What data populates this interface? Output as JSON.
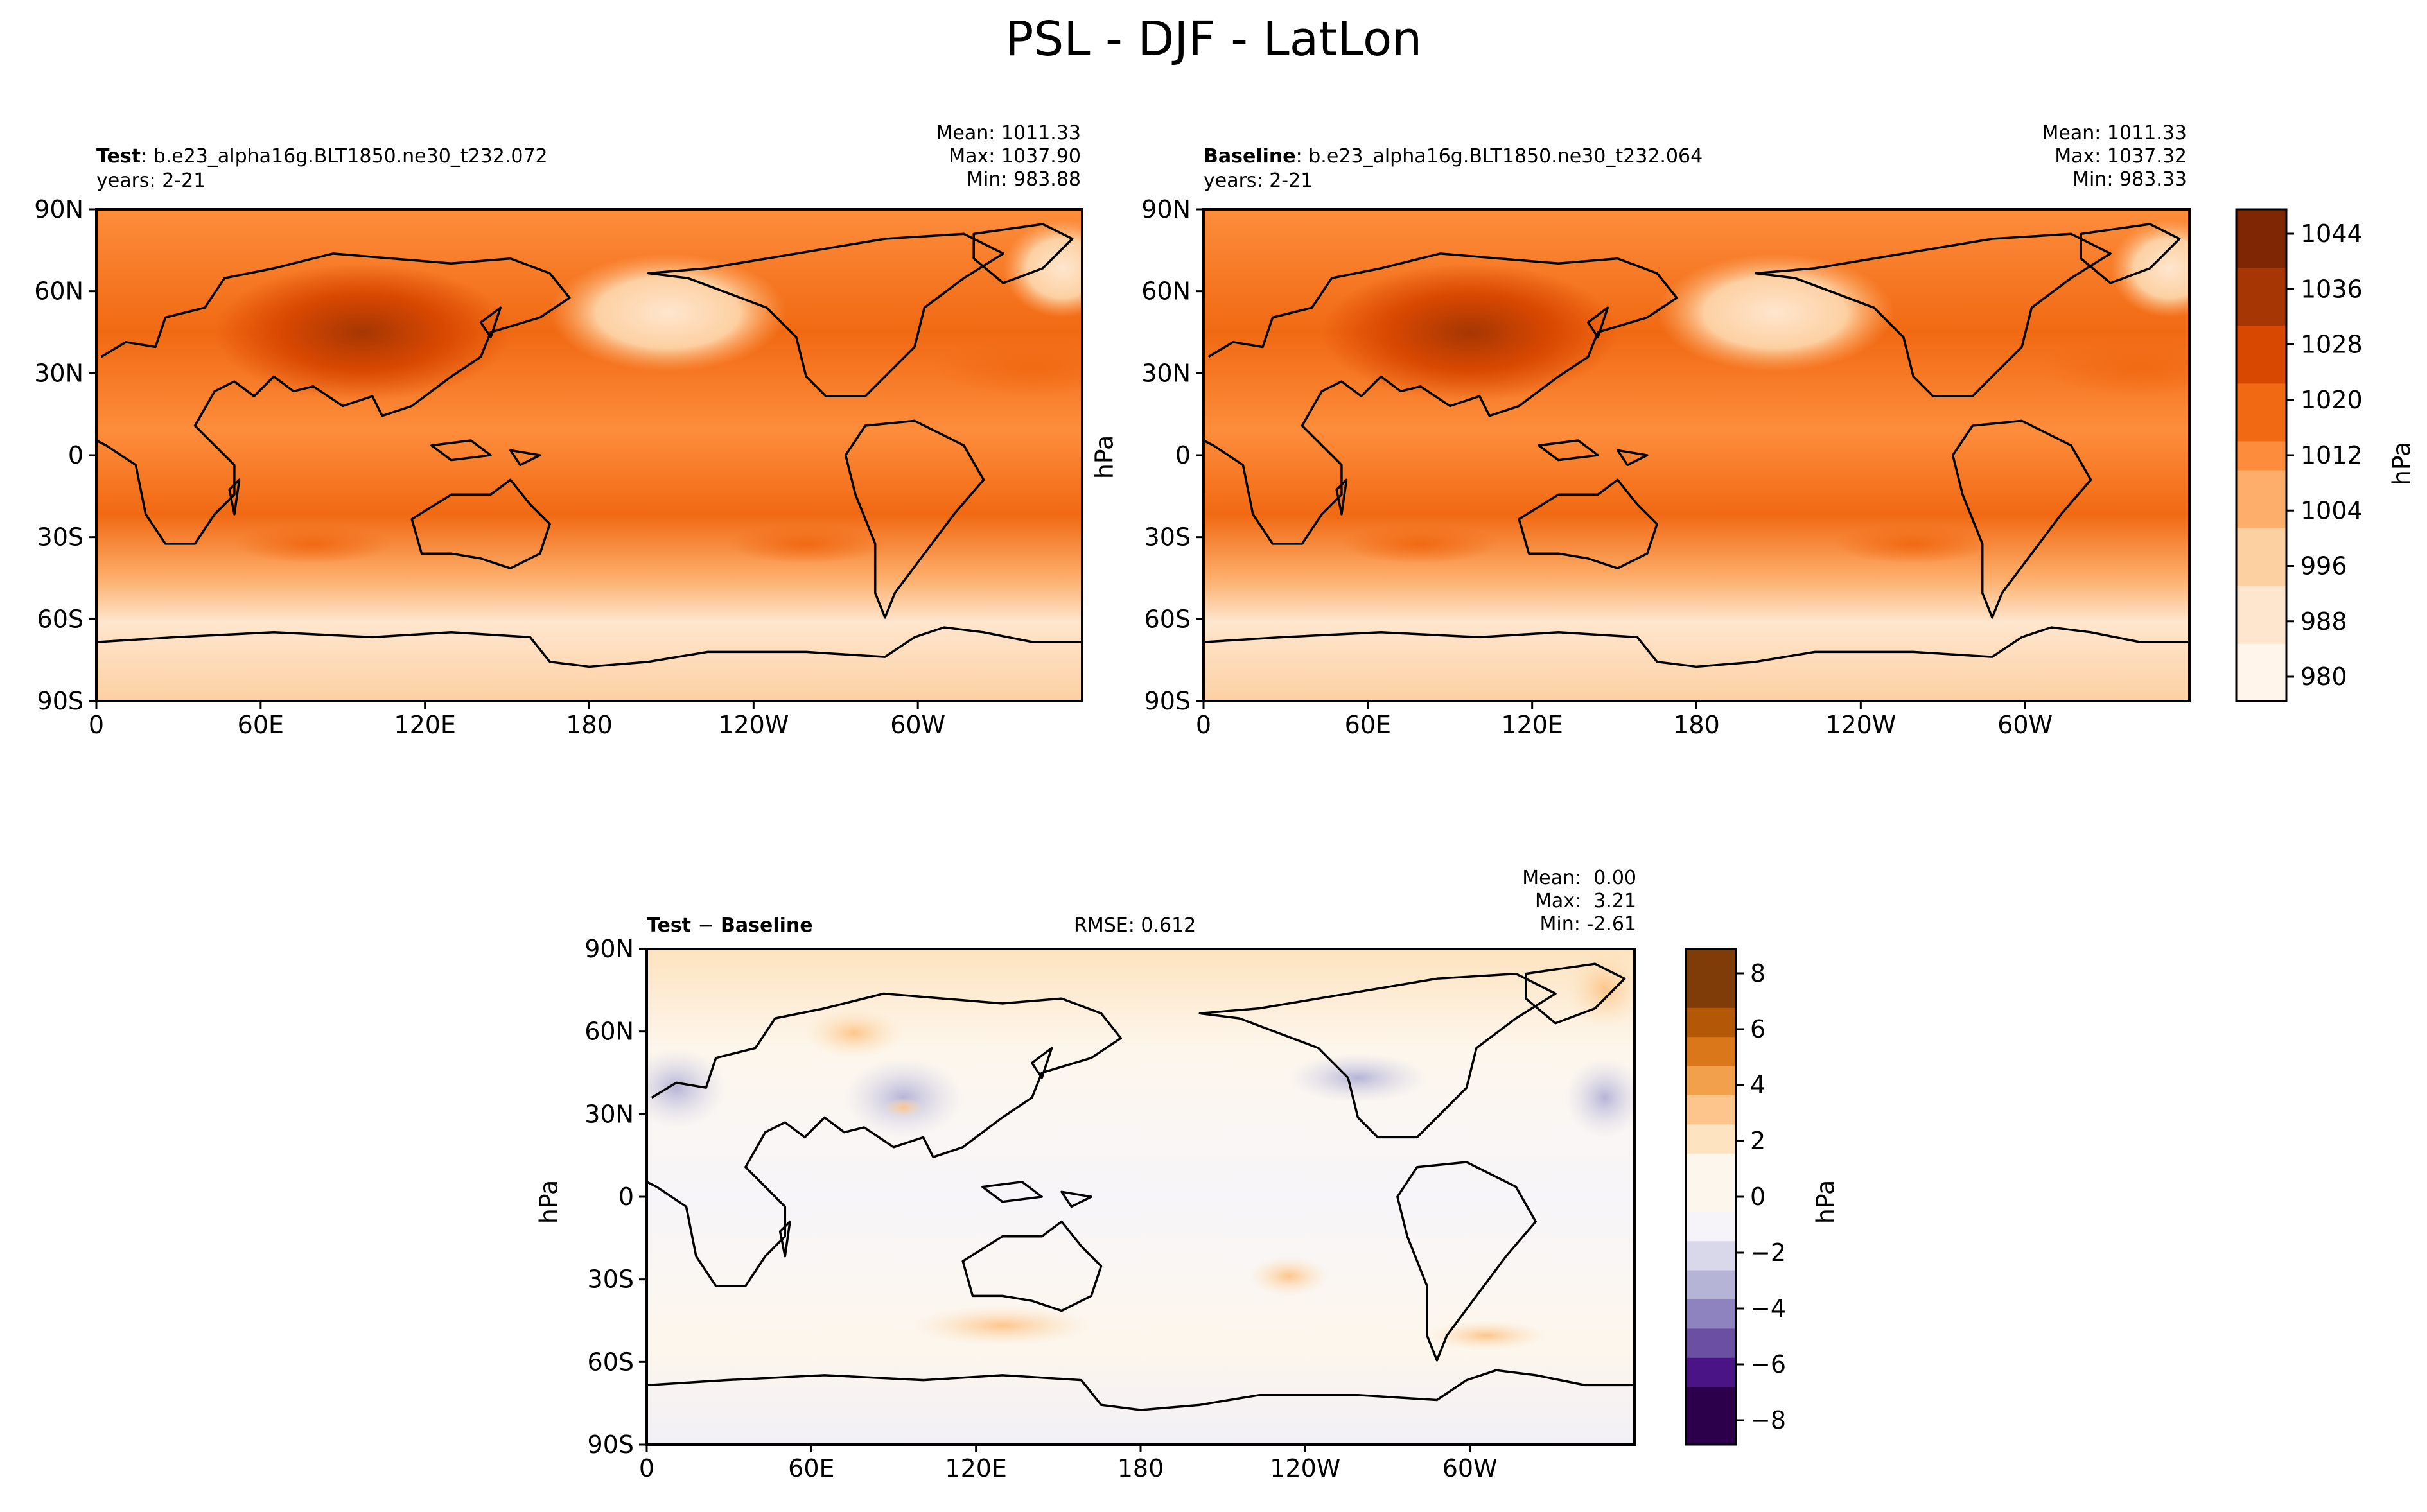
{
  "figure_title": "PSL - DJF - LatLon",
  "colors": {
    "land_outline": "#000000",
    "seq_cmap": [
      "#fff5eb",
      "#fee6ce",
      "#fdd0a2",
      "#fdae6b",
      "#fd8d3c",
      "#f16913",
      "#d94801",
      "#a63603",
      "#7f2704"
    ],
    "div_cmap_neg": [
      "#f6f4f9",
      "#d8d8ea",
      "#b5b4d6",
      "#8e83bf",
      "#6a4fa3",
      "#4a1486",
      "#2d004b"
    ],
    "div_cmap_pos": [
      "#fdf6ec",
      "#fde3bf",
      "#fdc58b",
      "#f3a04c",
      "#d9771a",
      "#b35806",
      "#7f3b08"
    ]
  },
  "panels": {
    "test": {
      "label_bold": "Test",
      "label_rest": ": b.e23_alpha16g.BLT1850.ne30_t232.072",
      "years": "years: 2-21",
      "mean": "Mean: 1011.33",
      "max": "Max: 1037.90",
      "min": "Min: 983.88"
    },
    "baseline": {
      "label_bold": "Baseline",
      "label_rest": ": b.e23_alpha16g.BLT1850.ne30_t232.064",
      "years": "years: 2-21",
      "mean": "Mean: 1011.33",
      "max": "Max: 1037.32",
      "min": "Min: 983.33"
    },
    "diff": {
      "label_bold": "Test − Baseline",
      "rmse": "RMSE: 0.612",
      "mean": "Mean:  0.00",
      "max": "Max:  3.21",
      "min": "Min: -2.61"
    }
  },
  "axes": {
    "lat_ticks": [
      "90N",
      "60N",
      "30N",
      "0",
      "30S",
      "60S",
      "90S"
    ],
    "lon_ticks": [
      "0",
      "60E",
      "120E",
      "180",
      "120W",
      "60W"
    ]
  },
  "colorbar_top": {
    "unit": "hPa",
    "ticks": [
      "1044",
      "1036",
      "1028",
      "1020",
      "1012",
      "1004",
      "996",
      "988",
      "980"
    ],
    "range": [
      980,
      1048
    ]
  },
  "colorbar_diff": {
    "unit": "hPa",
    "ticks": [
      "8",
      "6",
      "4",
      "2",
      "0",
      "−2",
      "−4",
      "−6",
      "−8"
    ],
    "range": [
      -9,
      9
    ]
  },
  "ylabel_unit": "hPa"
}
